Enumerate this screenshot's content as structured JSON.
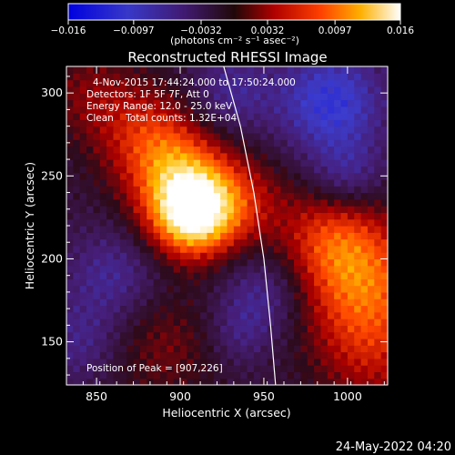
{
  "colorbar": {
    "ticks": [
      "−0.016",
      "−0.0097",
      "−0.0032",
      "0.0032",
      "0.0097",
      "0.016"
    ],
    "tick_values": [
      -0.016,
      -0.0097,
      -0.0032,
      0.0032,
      0.0097,
      0.016
    ],
    "range": [
      -0.016,
      0.016
    ],
    "unit_label": "(photons cm⁻² s⁻¹ asec⁻²)"
  },
  "chart_data": {
    "type": "heatmap",
    "title": "Reconstructed RHESSI Image",
    "xlabel": "Heliocentric X (arcsec)",
    "ylabel": "Heliocentric Y (arcsec)",
    "xlim": [
      832,
      1024
    ],
    "ylim": [
      124,
      316
    ],
    "x_ticks": [
      850,
      900,
      950,
      1000
    ],
    "y_ticks": [
      150,
      200,
      250,
      300
    ],
    "annotations": [
      "4-Nov-2015 17:44:24.000 to 17:50:24.000",
      "Detectors: 1F 5F 7F, Att 0",
      "Energy Range: 12.0 - 25.0 keV",
      "Clean    Total counts: 1.32E+04",
      "Position of Peak = [907,226]"
    ],
    "peak": {
      "x": 907,
      "y": 226
    },
    "limb_curve": [
      [
        926,
        316
      ],
      [
        936,
        280
      ],
      [
        944,
        240
      ],
      [
        950,
        200
      ],
      [
        954,
        160
      ],
      [
        957,
        124
      ]
    ]
  },
  "footer": {
    "date_stamp": "24-May-2022 04:20"
  }
}
